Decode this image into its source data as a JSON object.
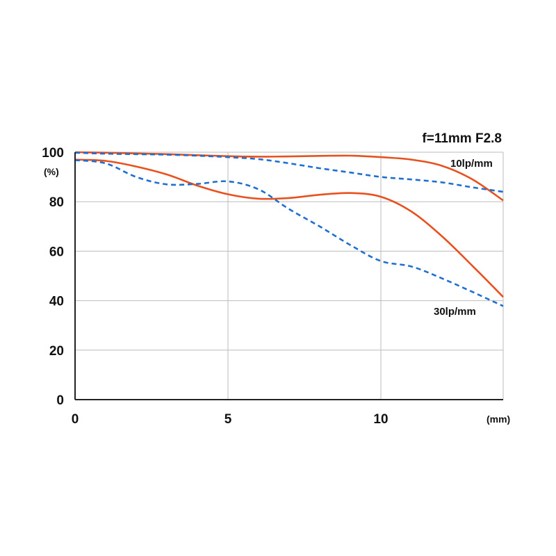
{
  "chart_data": {
    "type": "line",
    "title": "f=11mm F2.8",
    "xlabel": "(mm)",
    "ylabel": "(%)",
    "xlim": [
      0,
      14
    ],
    "ylim": [
      0,
      100
    ],
    "x_ticks": [
      0,
      5,
      10
    ],
    "y_ticks": [
      0,
      20,
      40,
      60,
      80,
      100
    ],
    "grid": true,
    "annotations": [
      "10lp/mm",
      "30lp/mm"
    ],
    "colors": {
      "sagittal": "#e8501e",
      "meridional": "#1f6fd1",
      "grid": "#bbbbbb",
      "axis": "#222222"
    },
    "series": [
      {
        "style": "solid",
        "color": "#e8501e",
        "x": [
          0,
          1,
          2,
          3,
          4,
          5,
          6,
          7,
          8,
          9,
          10,
          11,
          12,
          13,
          14
        ],
        "y": [
          100,
          99.8,
          99.5,
          99.2,
          98.8,
          98.4,
          98.2,
          98.3,
          98.5,
          98.6,
          98,
          97,
          94.5,
          89,
          80.5
        ]
      },
      {
        "style": "dashed",
        "color": "#1f6fd1",
        "x": [
          0,
          1,
          2,
          3,
          4,
          5,
          6,
          7,
          8,
          9,
          10,
          11,
          12,
          13,
          14
        ],
        "y": [
          99.8,
          99.4,
          99.2,
          99,
          98.6,
          98,
          97.2,
          95.5,
          93.5,
          91.8,
          90,
          89,
          87.8,
          85.8,
          84
        ]
      },
      {
        "style": "solid",
        "color": "#e8501e",
        "x": [
          0,
          1,
          2,
          3,
          4,
          5,
          6,
          7,
          8,
          9,
          10,
          11,
          12,
          13,
          14
        ],
        "y": [
          97,
          96.5,
          94.2,
          91,
          86.5,
          83,
          81.2,
          81.5,
          82.8,
          83.5,
          82,
          76,
          66,
          54,
          41.5
        ]
      },
      {
        "style": "dashed",
        "color": "#1f6fd1",
        "x": [
          0,
          1,
          2,
          3,
          4,
          5,
          6,
          7,
          8,
          9,
          10,
          11,
          12,
          13,
          14
        ],
        "y": [
          96.8,
          95.5,
          90,
          87,
          87.2,
          88.2,
          85,
          77,
          70,
          62.5,
          56,
          53.8,
          49,
          43.5,
          37.8
        ]
      }
    ]
  }
}
